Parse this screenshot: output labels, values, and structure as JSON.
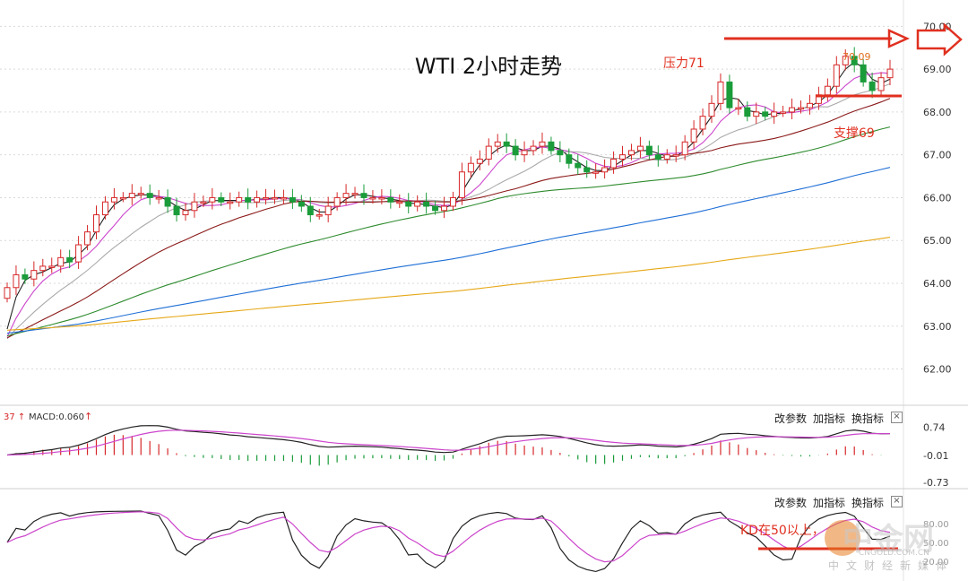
{
  "chart_data": [
    {
      "type": "candlestick",
      "title": "WTI 2小时走势",
      "yticks": [
        "70.00",
        "69.00",
        "68.00",
        "67.00",
        "66.00",
        "65.00",
        "64.00",
        "63.00",
        "62.00"
      ],
      "ylim": [
        61.3,
        70.3
      ],
      "n": 100,
      "closes": [
        63.9,
        64.2,
        64.1,
        64.3,
        64.4,
        64.4,
        64.6,
        64.5,
        64.9,
        65.2,
        65.6,
        65.9,
        66.0,
        66.0,
        66.1,
        66.1,
        66.0,
        66.0,
        65.8,
        65.6,
        65.7,
        65.9,
        65.9,
        66.0,
        65.9,
        65.9,
        66.0,
        65.9,
        66.0,
        66.0,
        66.0,
        66.0,
        65.9,
        65.8,
        65.6,
        65.6,
        65.8,
        66.0,
        66.1,
        66.1,
        66.0,
        66.0,
        66.0,
        65.9,
        65.9,
        65.8,
        65.9,
        65.8,
        65.7,
        65.8,
        66.0,
        66.6,
        66.8,
        66.9,
        67.2,
        67.3,
        67.2,
        67.0,
        67.1,
        67.2,
        67.3,
        67.1,
        67.0,
        66.8,
        66.7,
        66.6,
        66.6,
        66.7,
        66.9,
        67.0,
        67.1,
        67.2,
        67.0,
        66.9,
        67.0,
        67.0,
        67.3,
        67.6,
        67.9,
        68.2,
        68.7,
        68.1,
        68.1,
        67.9,
        68.0,
        67.9,
        68.0,
        68.0,
        68.1,
        68.1,
        68.2,
        68.4,
        68.6,
        69.1,
        69.3,
        69.1,
        68.7,
        68.5,
        68.8,
        69.0
      ],
      "series": [
        {
          "color": "#222222",
          "period": 3
        },
        {
          "color": "#cc44cc",
          "period": 6
        },
        {
          "color": "#aaaaaa",
          "period": 12
        },
        {
          "color": "#8b1a1a",
          "period": 24
        },
        {
          "color": "#2e8b2e",
          "period": 48
        },
        {
          "color": "#1f6fd6",
          "period": 96
        },
        {
          "color": "#e6a817",
          "period": 192
        }
      ],
      "annotations": {
        "resistance_label": "压力71",
        "resistance_price": "70.09",
        "support_label": "支撑69"
      },
      "colors": {
        "up": "#d62728",
        "down": "#1a9c3a",
        "annotation": "#e03020"
      }
    },
    {
      "type": "macd",
      "indicator_label": "MACD:0.060",
      "indicator_left": "37 ↑",
      "yticks": [
        "0.74",
        "-0.01",
        "-0.73"
      ],
      "ylim": [
        -0.9,
        0.9
      ]
    },
    {
      "type": "kd",
      "annotation": "KD在50以上，",
      "yticks": [
        "80.00",
        "50.00",
        "20.00"
      ]
    }
  ],
  "panel_buttons": {
    "params": "改参数",
    "add": "加指标",
    "swap": "换指标",
    "close": "×"
  },
  "watermark": {
    "name": "中金网",
    "url": "CNGOLD.COM.CN",
    "tagline": "中文财经新媒体"
  }
}
